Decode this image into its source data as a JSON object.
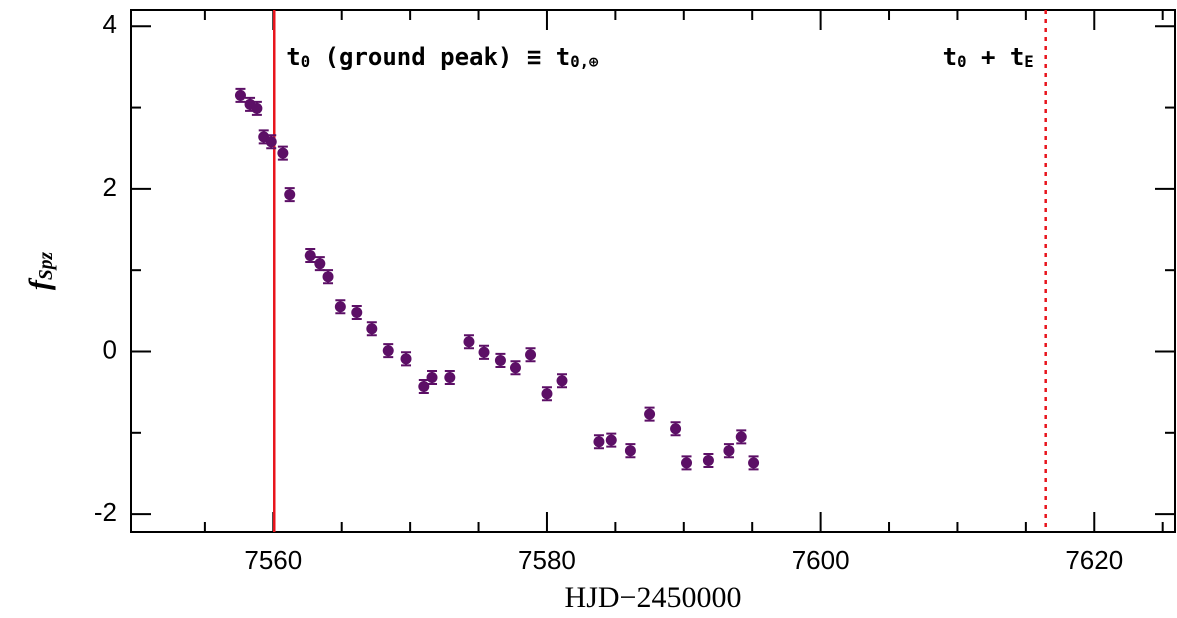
{
  "chart_data": {
    "type": "scatter",
    "xlabel": "HJD−2450000",
    "ylabel_parts": [
      {
        "text": "f"
      },
      {
        "text": "Spz",
        "sub": true
      }
    ],
    "xlim": [
      7549.6,
      7625.9
    ],
    "ylim": [
      -2.22,
      4.2
    ],
    "xticks": [
      7560,
      7580,
      7600,
      7620
    ],
    "yticks": [
      -2,
      0,
      2,
      4
    ],
    "xminorticks": [
      7555,
      7565,
      7570,
      7575,
      7585,
      7590,
      7595,
      7605,
      7610,
      7615,
      7625
    ],
    "yminorticks": [
      -1,
      1,
      3
    ],
    "series": [
      {
        "color": "#5c0f66",
        "x": [
          7557.6,
          7558.3,
          7558.8,
          7559.3,
          7559.85,
          7560.7,
          7561.2,
          7562.7,
          7563.4,
          7564.0,
          7564.9,
          7566.1,
          7567.2,
          7568.4,
          7569.7,
          7571.0,
          7571.6,
          7572.9,
          7574.3,
          7575.4,
          7576.6,
          7577.7,
          7578.8,
          7580.0,
          7581.1,
          7583.8,
          7584.7,
          7586.1,
          7587.5,
          7589.4,
          7590.2,
          7591.8,
          7593.3,
          7594.2,
          7595.1
        ],
        "values": [
          3.15,
          3.04,
          2.99,
          2.64,
          2.58,
          2.44,
          1.93,
          1.18,
          1.08,
          0.92,
          0.55,
          0.48,
          0.28,
          0.01,
          -0.09,
          -0.43,
          -0.32,
          -0.32,
          0.12,
          -0.01,
          -0.11,
          -0.2,
          -0.04,
          -0.52,
          -0.36,
          -1.11,
          -1.09,
          -1.22,
          -0.77,
          -0.95,
          -1.37,
          -1.34,
          -1.22,
          -1.05,
          -1.37
        ],
        "errors": [
          0.08,
          0.08,
          0.08,
          0.08,
          0.08,
          0.08,
          0.08,
          0.08,
          0.08,
          0.08,
          0.08,
          0.08,
          0.08,
          0.08,
          0.08,
          0.08,
          0.08,
          0.08,
          0.08,
          0.08,
          0.08,
          0.08,
          0.08,
          0.08,
          0.08,
          0.08,
          0.08,
          0.08,
          0.08,
          0.08,
          0.08,
          0.08,
          0.08,
          0.08,
          0.08
        ]
      }
    ],
    "vlines": [
      {
        "x": 7560.07,
        "color": "#e8141c",
        "dashed": false,
        "label_side": "right",
        "label_parts": [
          {
            "text": "t"
          },
          {
            "text": "0",
            "sub": true
          },
          {
            "text": " (ground peak) ≡ t"
          },
          {
            "text": "0,⊕",
            "sub": true
          }
        ]
      },
      {
        "x": 7616.45,
        "color": "#e8141c",
        "dashed": true,
        "label_side": "left",
        "label_parts": [
          {
            "text": "t"
          },
          {
            "text": "0",
            "sub": true
          },
          {
            "text": " + t"
          },
          {
            "text": "E",
            "sub": true
          }
        ]
      }
    ]
  }
}
